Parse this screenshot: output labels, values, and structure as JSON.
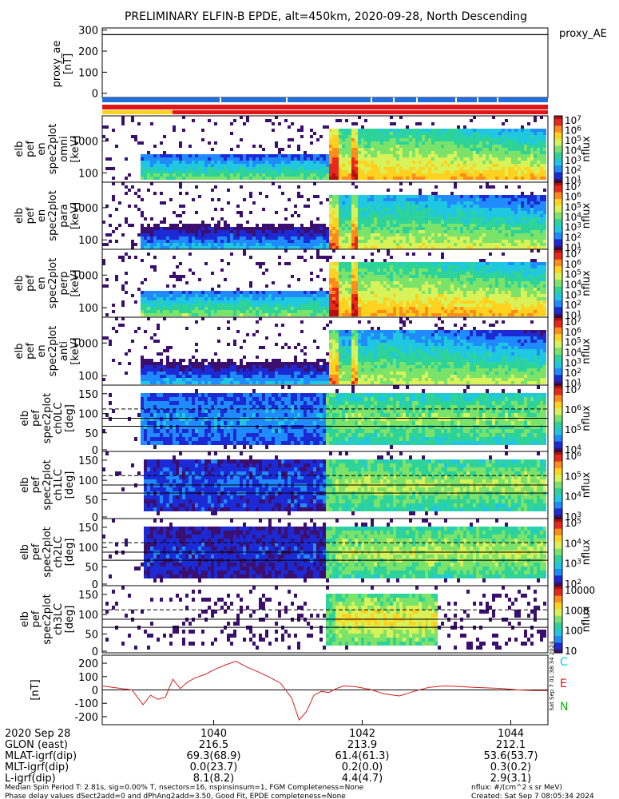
{
  "title": "PRELIMINARY ELFIN-B EPDE, alt=450km, 2020-09-28, North Descending",
  "colors": {
    "spec": [
      "#ffffff",
      "#3b0f6f",
      "#1c2ad6",
      "#1f8bff",
      "#1fc8e0",
      "#2ed39a",
      "#7be36a",
      "#d8f25a",
      "#ffd21f",
      "#ff8c1a",
      "#e8281b",
      "#b80d0d"
    ],
    "line": "#d42020",
    "axes": "#000000",
    "bar_blue": "#1f6fe0",
    "bar_red": "#e01515",
    "bar_yellow": "#ffd21f",
    "label_C": "#00c8ff",
    "label_E": "#e01515",
    "label_N": "#10c010"
  },
  "chart_data": [
    {
      "type": "line",
      "name": "proxy_ae",
      "ylabel_lines": [
        "proxy_ae",
        "[nT]"
      ],
      "right_label": "proxy_AE",
      "yticks": [
        "300",
        "200",
        "100",
        "0"
      ],
      "ylim": [
        -20,
        310
      ],
      "x": [
        1038.5,
        1044.5
      ],
      "y": [
        278,
        278
      ]
    },
    {
      "type": "heatmap",
      "name": "spec2plot omni",
      "ylabel_lines": [
        "elb",
        "pef",
        "en",
        "spec2plot",
        "omni",
        "[keV]"
      ],
      "yticks": [
        "1000",
        "100"
      ],
      "colorbar": {
        "label": "nflux",
        "ticks": [
          "10^7",
          "10^6",
          "10^5",
          "10^4",
          "10^3",
          "10^2",
          "10^1"
        ]
      }
    },
    {
      "type": "heatmap",
      "name": "spec2plot para",
      "ylabel_lines": [
        "elb",
        "pef",
        "en",
        "spec2plot",
        "para",
        "[keV]"
      ],
      "yticks": [
        "1000",
        "100"
      ],
      "colorbar": {
        "label": "nflux",
        "ticks": [
          "10^7",
          "10^6",
          "10^5",
          "10^4",
          "10^3",
          "10^2",
          "10^1"
        ]
      }
    },
    {
      "type": "heatmap",
      "name": "spec2plot perp",
      "ylabel_lines": [
        "elb",
        "pef",
        "en",
        "spec2plot",
        "perp",
        "[keV]"
      ],
      "yticks": [
        "1000",
        "100"
      ],
      "colorbar": {
        "label": "nflux",
        "ticks": [
          "10^7",
          "10^6",
          "10^5",
          "10^4",
          "10^3",
          "10^2",
          "10^1"
        ]
      }
    },
    {
      "type": "heatmap",
      "name": "spec2plot anti",
      "ylabel_lines": [
        "elb",
        "pef",
        "en",
        "spec2plot",
        "anti",
        "[keV]"
      ],
      "yticks": [
        "1000",
        "100"
      ],
      "colorbar": {
        "label": "nflux",
        "ticks": [
          "10^7",
          "10^6",
          "10^5",
          "10^4",
          "10^3",
          "10^2",
          "10^1"
        ]
      }
    },
    {
      "type": "heatmap",
      "name": "spec2plot ch0LC",
      "ylabel_lines": [
        "elb",
        "pef",
        "spec2plot",
        "ch0LC",
        "[deg]"
      ],
      "yticks": [
        "150",
        "100",
        "50",
        "0"
      ],
      "colorbar": {
        "label": "nflux",
        "ticks": [
          "10^7",
          "10^6",
          "10^5",
          "10^4"
        ]
      }
    },
    {
      "type": "heatmap",
      "name": "spec2plot ch1LC",
      "ylabel_lines": [
        "elb",
        "pef",
        "spec2plot",
        "ch1LC",
        "[deg]"
      ],
      "yticks": [
        "150",
        "100",
        "50",
        "0"
      ],
      "colorbar": {
        "label": "nflux",
        "ticks": [
          "10^6",
          "10^5",
          "10^4",
          "10^3"
        ]
      }
    },
    {
      "type": "heatmap",
      "name": "spec2plot ch2LC",
      "ylabel_lines": [
        "elb",
        "pef",
        "spec2plot",
        "ch2LC",
        "[deg]"
      ],
      "yticks": [
        "150",
        "100",
        "50",
        "0"
      ],
      "colorbar": {
        "label": "nflux",
        "ticks": [
          "10^5",
          "10^4",
          "10^3",
          "10^2"
        ]
      }
    },
    {
      "type": "heatmap",
      "name": "spec2plot ch3LC",
      "ylabel_lines": [
        "elb",
        "pef",
        "spec2plot",
        "ch3LC",
        "[deg]"
      ],
      "yticks": [
        "150",
        "100",
        "50",
        "0"
      ],
      "colorbar": {
        "label": "nflux",
        "ticks": [
          "10000",
          "1000",
          "100",
          "10"
        ]
      }
    },
    {
      "type": "line",
      "name": "magnetic field",
      "ylabel_lines": [
        "[nT]"
      ],
      "yticks": [
        "200",
        "100",
        "0",
        "-100",
        "-200"
      ],
      "ylim": [
        -260,
        260
      ],
      "components": [
        "C",
        "E",
        "N"
      ],
      "side_text": "Sat Sep  7 01:38:34 2024",
      "x": [
        1038.5,
        1038.7,
        1038.9,
        1039.05,
        1039.15,
        1039.25,
        1039.35,
        1039.45,
        1039.55,
        1039.65,
        1039.75,
        1039.9,
        1040.0,
        1040.15,
        1040.3,
        1040.45,
        1040.6,
        1040.75,
        1040.9,
        1041.05,
        1041.15,
        1041.25,
        1041.35,
        1041.45,
        1041.55,
        1041.65,
        1041.75,
        1041.9,
        1042.1,
        1042.3,
        1042.5,
        1042.7,
        1042.9,
        1043.1,
        1043.3,
        1043.5,
        1043.7,
        1043.9,
        1044.1,
        1044.3,
        1044.5
      ],
      "y": [
        30,
        15,
        0,
        -110,
        -40,
        -70,
        -55,
        80,
        10,
        60,
        90,
        120,
        150,
        185,
        215,
        170,
        135,
        95,
        50,
        -60,
        -225,
        -160,
        -40,
        -10,
        -20,
        10,
        30,
        25,
        5,
        -30,
        -45,
        -10,
        20,
        30,
        25,
        20,
        15,
        10,
        0,
        -5,
        -5
      ]
    }
  ],
  "x_axis": {
    "rows": [
      {
        "label": "2020 Sep 28",
        "values": [
          "1040",
          "1042",
          "1044"
        ]
      },
      {
        "label": "GLON (east)",
        "values": [
          "216.5",
          "213.9",
          "212.1"
        ]
      },
      {
        "label": "MLAT-igrf(dip)",
        "values": [
          "69.3(68.9)",
          "61.4(61.3)",
          "53.6(53.7)"
        ]
      },
      {
        "label": "MLT-igrf(dip)",
        "values": [
          "0.0(23.7)",
          "0.2(0.0)",
          "0.3(0.2)"
        ]
      },
      {
        "label": "L-igrf(dip)",
        "values": [
          "8.1(8.2)",
          "4.4(4.7)",
          "2.9(3.1)"
        ]
      }
    ]
  },
  "footer": {
    "left1": "Median Spin Period T: 2.81s, sig=0.00% T, nsectors=16, nspinsinsum=1, FGM Completeness=None",
    "left2": "Phase delay values dSect2add=0 and dPhAng2add=3.50, Good Fit, EPDE completeness=None",
    "right1": "nflux: #/(cm^2 s sr MeV)",
    "right2": "Created: Sat Sep  7 08:05:34 2024"
  }
}
